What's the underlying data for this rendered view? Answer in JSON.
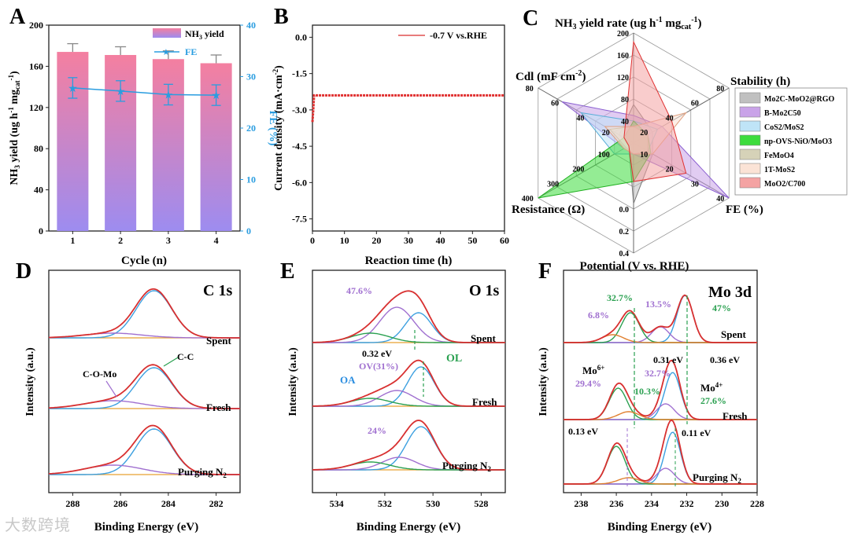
{
  "chart_data": [
    {
      "panel": "A",
      "type": "bar",
      "categories": [
        "1",
        "2",
        "3",
        "4"
      ],
      "series": [
        {
          "name": "NH3 yield",
          "values": [
            174,
            171,
            167,
            163
          ],
          "errors": [
            8,
            8,
            8,
            8
          ]
        },
        {
          "name": "FE",
          "axis": "right",
          "values": [
            27.8,
            27.2,
            26.5,
            26.4
          ],
          "errors": [
            2,
            2,
            2,
            2
          ]
        }
      ],
      "xlabel": "Cycle (n)",
      "ylabel": "NH3 yield (ug h-1 mgcat-1)",
      "y2label": "FE (%)",
      "ylim": [
        0,
        200
      ],
      "y2lim": [
        0,
        40
      ],
      "yticks": [
        "0",
        "40",
        "80",
        "120",
        "160",
        "200"
      ],
      "y2ticks": [
        "0",
        "10",
        "20",
        "30",
        "40"
      ],
      "legend_yield": "NH",
      "legend_fe": "FE"
    },
    {
      "panel": "B",
      "type": "line",
      "title": "",
      "series": [
        {
          "name": "-0.7 V vs.RHE",
          "plateau": -2.4,
          "start": -3.5
        }
      ],
      "xlabel": "Reaction time (h)",
      "ylabel": "Current density (mA·cm-2)",
      "xlim": [
        0,
        60
      ],
      "ylim": [
        -8,
        0.5
      ],
      "xticks": [
        "0",
        "10",
        "20",
        "30",
        "40",
        "50",
        "60"
      ],
      "yticks": [
        "0.0",
        "-1.5",
        "-3.0",
        "-4.5",
        "-6.0",
        "-7.5"
      ],
      "legend": "-0.7 V vs.RHE"
    },
    {
      "panel": "C",
      "type": "radar",
      "axes": [
        "NH3 yield rate (ug h-1 mgcat-1)",
        "Stability (h)",
        "FE (%)",
        "Potential (V vs. RHE)",
        "Resistance (Ω)",
        "Cdl (mF cm-2)"
      ],
      "title_text": "NH",
      "labels": {
        "stability": "Stability (h)",
        "fe": "FE (%)",
        "potential": "Potential (V vs. RHE)",
        "resistance": "Resistance (Ω)",
        "cdl": "Cdl (mF cm"
      },
      "axis_ticks": {
        "yield": [
          "200",
          "160",
          "120",
          "80",
          "40"
        ],
        "stability": [
          "80",
          "60",
          "40",
          "20"
        ],
        "fe": [
          "40",
          "30",
          "20",
          "10"
        ],
        "potential": [
          "0.4",
          "0.2",
          "0.0"
        ],
        "resistance": [
          "400",
          "300",
          "200",
          "100"
        ],
        "cdl": [
          "80",
          "60",
          "40",
          "20"
        ]
      },
      "series": [
        {
          "name": "Mo2C-MoO2@RGO",
          "color": "#c0c0c0"
        },
        {
          "name": "B-Mo2C50",
          "color": "#c9a3e8"
        },
        {
          "name": "CoS2/MoS2",
          "color": "#bfe4f7"
        },
        {
          "name": "np-OVS-NiO/MoO3",
          "color": "#3ddc3d"
        },
        {
          "name": "FeMoO4",
          "color": "#d6d2b8"
        },
        {
          "name": "1T-MoS2",
          "color": "#fbe3d6"
        },
        {
          "name": "MoO2/C700",
          "color": "#f4a3a3"
        }
      ],
      "legend_labels": [
        "Mo",
        "B-Mo",
        "CoS",
        "np-O",
        "FeMoO",
        "1T-MoS",
        "MoO"
      ]
    },
    {
      "panel": "D",
      "type": "line",
      "title": "C 1s",
      "xlabel": "Binding Energy (eV)",
      "ylabel": "Intensity (a.u.)",
      "xticks": [
        "288",
        "286",
        "284",
        "282"
      ],
      "curves": [
        "Spent",
        "Fresh",
        "Purging N2"
      ],
      "annotations": [
        "C-O-Mo",
        "C-C"
      ]
    },
    {
      "panel": "E",
      "type": "line",
      "title": "O 1s",
      "xlabel": "Binding Energy (eV)",
      "ylabel": "Intensity (a.u.)",
      "xticks": [
        "534",
        "532",
        "530",
        "528"
      ],
      "curves": [
        "Spent",
        "Fresh",
        "Purging N2"
      ],
      "annotations": [
        "47.6%",
        "0.32 eV",
        "OV(31%)",
        "OL",
        "OA",
        "24%"
      ]
    },
    {
      "panel": "F",
      "type": "line",
      "title": "Mo 3d",
      "xlabel": "Binding Energy (eV)",
      "ylabel": "Intensity (a.u.)",
      "xticks": [
        "238",
        "236",
        "234",
        "232",
        "230",
        "228"
      ],
      "curves": [
        "Spent",
        "Fresh",
        "Purging N2"
      ],
      "annotations": [
        "32.7%",
        "13.5%",
        "6.8%",
        "47%",
        "0.31 eV",
        "0.36 eV",
        "Mo6+",
        "29.4%",
        "32.7%",
        "10.3%",
        "Mo4+",
        "27.6%",
        "0.13 eV",
        "0.11 eV"
      ]
    }
  ],
  "panel_labels": [
    "A",
    "B",
    "C",
    "D",
    "E",
    "F"
  ],
  "watermark": "大数跨境"
}
